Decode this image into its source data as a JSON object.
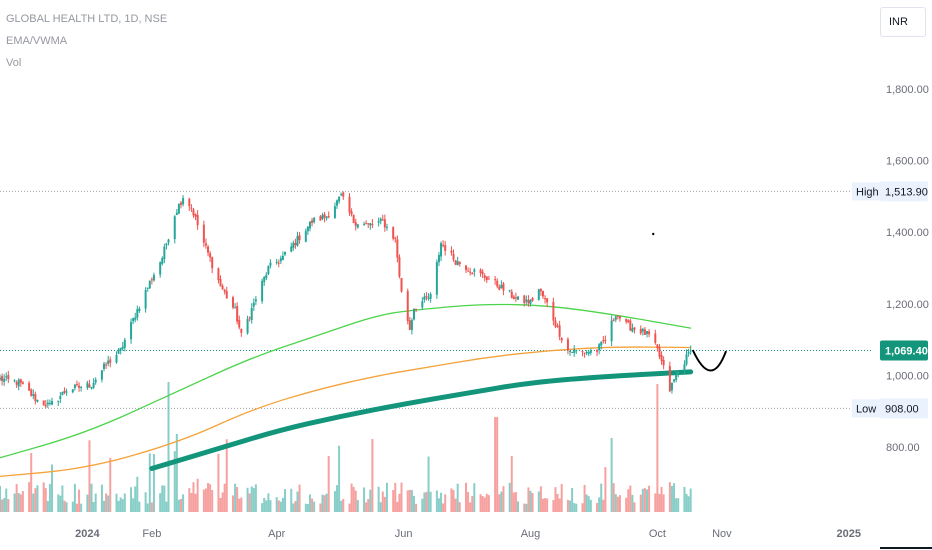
{
  "header": {
    "symbol_line": "GLOBAL HEALTH LTD, 1D, NSE",
    "indicator_1": "EMA/VWMA",
    "indicator_2": "Vol",
    "currency": "INR"
  },
  "colors": {
    "up": "#26a69a",
    "down": "#ef5350",
    "ema_green": "#4cd44c",
    "ema_orange": "#f5a23a",
    "vwma_teal": "#12957a",
    "price_tag": "#12957a",
    "grid_dotted": "#9aa0ab",
    "drawing": "#000000"
  },
  "chart_data": {
    "type": "candlestick",
    "title": "GLOBAL HEALTH LTD, 1D, NSE",
    "currency": "INR",
    "ylim": [
      690,
      2000
    ],
    "y_ticks": [
      800,
      1000,
      1200,
      1400,
      1600,
      1800
    ],
    "y_tick_labels": [
      "800.00",
      "1,000.00",
      "1,200.00",
      "1,400.00",
      "1,600.00",
      "1,800.00"
    ],
    "x_tick_labels": [
      "2024",
      "Feb",
      "Apr",
      "Jun",
      "Aug",
      "Oct",
      "Nov",
      "2025"
    ],
    "x_tick_dates": [
      "2024-01-01",
      "2024-02-01",
      "2024-04-01",
      "2024-06-01",
      "2024-08-01",
      "2024-10-01",
      "2024-11-01",
      "2025-01-01"
    ],
    "xlim": [
      "2023-11-20",
      "2025-02-10"
    ],
    "high": {
      "label": "High",
      "value": 1513.9,
      "text": "1,513.90"
    },
    "low": {
      "label": "Low",
      "value": 908.0,
      "text": "908.00"
    },
    "last": {
      "value": 1069.4,
      "text": "1,069.40"
    },
    "price_anchors": [
      [
        "2023-11-20",
        990
      ],
      [
        "2023-11-29",
        980
      ],
      [
        "2023-12-08",
        930
      ],
      [
        "2023-12-14",
        915
      ],
      [
        "2023-12-22",
        960
      ],
      [
        "2024-01-03",
        975
      ],
      [
        "2024-01-10",
        1030
      ],
      [
        "2024-01-17",
        1070
      ],
      [
        "2024-01-24",
        1170
      ],
      [
        "2024-01-31",
        1260
      ],
      [
        "2024-02-06",
        1330
      ],
      [
        "2024-02-12",
        1450
      ],
      [
        "2024-02-16",
        1500
      ],
      [
        "2024-02-20",
        1470
      ],
      [
        "2024-02-26",
        1370
      ],
      [
        "2024-03-05",
        1250
      ],
      [
        "2024-03-12",
        1180
      ],
      [
        "2024-03-15",
        1110
      ],
      [
        "2024-03-21",
        1200
      ],
      [
        "2024-03-28",
        1300
      ],
      [
        "2024-04-04",
        1330
      ],
      [
        "2024-04-11",
        1380
      ],
      [
        "2024-04-18",
        1430
      ],
      [
        "2024-04-25",
        1445
      ],
      [
        "2024-05-02",
        1500
      ],
      [
        "2024-05-08",
        1430
      ],
      [
        "2024-05-15",
        1420
      ],
      [
        "2024-05-22",
        1430
      ],
      [
        "2024-05-28",
        1380
      ],
      [
        "2024-05-31",
        1230
      ],
      [
        "2024-06-04",
        1130
      ],
      [
        "2024-06-06",
        1190
      ],
      [
        "2024-06-11",
        1210
      ],
      [
        "2024-06-14",
        1220
      ],
      [
        "2024-06-19",
        1370
      ],
      [
        "2024-06-26",
        1320
      ],
      [
        "2024-07-05",
        1290
      ],
      [
        "2024-07-12",
        1270
      ],
      [
        "2024-07-19",
        1240
      ],
      [
        "2024-07-26",
        1210
      ],
      [
        "2024-08-01",
        1205
      ],
      [
        "2024-08-05",
        1240
      ],
      [
        "2024-08-09",
        1200
      ],
      [
        "2024-08-14",
        1130
      ],
      [
        "2024-08-19",
        1070
      ],
      [
        "2024-08-26",
        1065
      ],
      [
        "2024-09-02",
        1070
      ],
      [
        "2024-09-06",
        1100
      ],
      [
        "2024-09-11",
        1175
      ],
      [
        "2024-09-16",
        1140
      ],
      [
        "2024-09-23",
        1125
      ],
      [
        "2024-09-27",
        1110
      ],
      [
        "2024-10-01",
        1070
      ],
      [
        "2024-10-04",
        1020
      ],
      [
        "2024-10-07",
        960
      ],
      [
        "2024-10-10",
        1000
      ],
      [
        "2024-10-14",
        1040
      ],
      [
        "2024-10-17",
        1069.4
      ]
    ],
    "series": [
      {
        "name": "EMA (green)",
        "kind": "line",
        "points": [
          [
            "2023-11-20",
            770
          ],
          [
            "2024-01-01",
            840
          ],
          [
            "2024-02-15",
            960
          ],
          [
            "2024-03-20",
            1050
          ],
          [
            "2024-04-20",
            1110
          ],
          [
            "2024-05-20",
            1170
          ],
          [
            "2024-06-10",
            1185
          ],
          [
            "2024-07-10",
            1200
          ],
          [
            "2024-08-10",
            1195
          ],
          [
            "2024-09-10",
            1170
          ],
          [
            "2024-10-17",
            1132
          ]
        ]
      },
      {
        "name": "EMA (orange)",
        "kind": "line",
        "points": [
          [
            "2023-11-20",
            718
          ],
          [
            "2024-01-01",
            740
          ],
          [
            "2024-02-15",
            815
          ],
          [
            "2024-03-20",
            905
          ],
          [
            "2024-04-20",
            960
          ],
          [
            "2024-05-20",
            1000
          ],
          [
            "2024-06-10",
            1020
          ],
          [
            "2024-07-10",
            1050
          ],
          [
            "2024-08-10",
            1070
          ],
          [
            "2024-09-10",
            1080
          ],
          [
            "2024-10-17",
            1078
          ]
        ]
      },
      {
        "name": "VWMA (teal)",
        "kind": "line",
        "points": [
          [
            "2024-02-01",
            740
          ],
          [
            "2024-03-01",
            790
          ],
          [
            "2024-04-01",
            845
          ],
          [
            "2024-05-01",
            885
          ],
          [
            "2024-06-01",
            920
          ],
          [
            "2024-07-01",
            950
          ],
          [
            "2024-08-01",
            980
          ],
          [
            "2024-09-01",
            995
          ],
          [
            "2024-10-01",
            1005
          ],
          [
            "2024-10-17",
            1010
          ]
        ]
      }
    ],
    "drawings": {
      "arc": [
        [
          "2024-10-18",
          1071
        ],
        [
          "2024-10-27",
          1008
        ],
        [
          "2024-11-03",
          1068
        ]
      ],
      "dot": [
        "2024-09-29",
        1395
      ]
    }
  }
}
